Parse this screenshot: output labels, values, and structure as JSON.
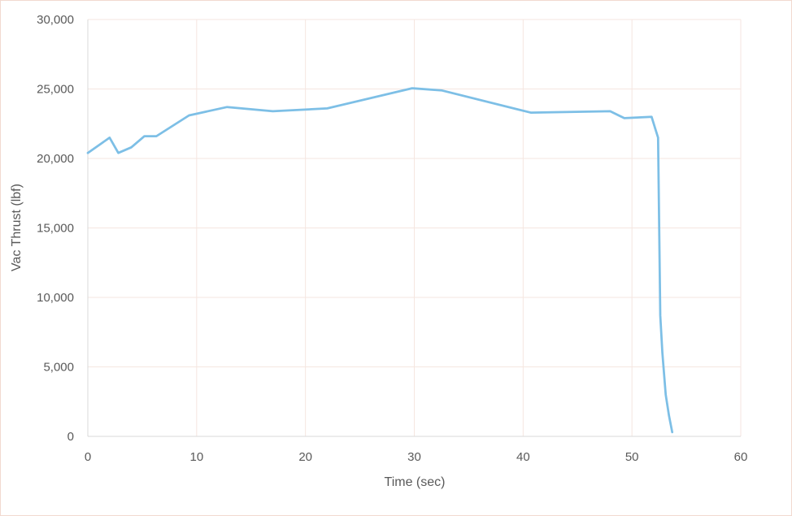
{
  "chart_data": {
    "type": "line",
    "title": "",
    "xlabel": "Time (sec)",
    "ylabel": "Vac Thrust (lbf)",
    "xlim": [
      0,
      60
    ],
    "ylim": [
      0,
      30000
    ],
    "grid": true,
    "legend": "none",
    "x_ticks": [
      "0",
      "10",
      "20",
      "30",
      "40",
      "50",
      "60"
    ],
    "y_ticks": [
      "0",
      "5,000",
      "10,000",
      "15,000",
      "20,000",
      "25,000",
      "30,000"
    ],
    "colors": {
      "line": "#7dbfe6",
      "grid": "#f5e6e0",
      "axis": "#d9d9d9",
      "text": "#595959"
    },
    "series": [
      {
        "x": [
          0,
          2.0,
          2.8,
          4.0,
          5.2,
          6.3,
          9.3,
          12.8,
          17.0,
          22.0,
          29.8,
          32.5,
          40.7,
          48.0,
          49.3,
          51.8,
          52.2,
          52.4,
          52.6,
          52.8,
          53.1,
          53.4,
          53.7
        ],
        "y": [
          20400,
          21500,
          20400,
          20800,
          21600,
          21600,
          23100,
          23700,
          23400,
          23600,
          25050,
          24900,
          23300,
          23400,
          22900,
          23000,
          22000,
          21500,
          8700,
          6000,
          3000,
          1500,
          300
        ]
      }
    ]
  }
}
